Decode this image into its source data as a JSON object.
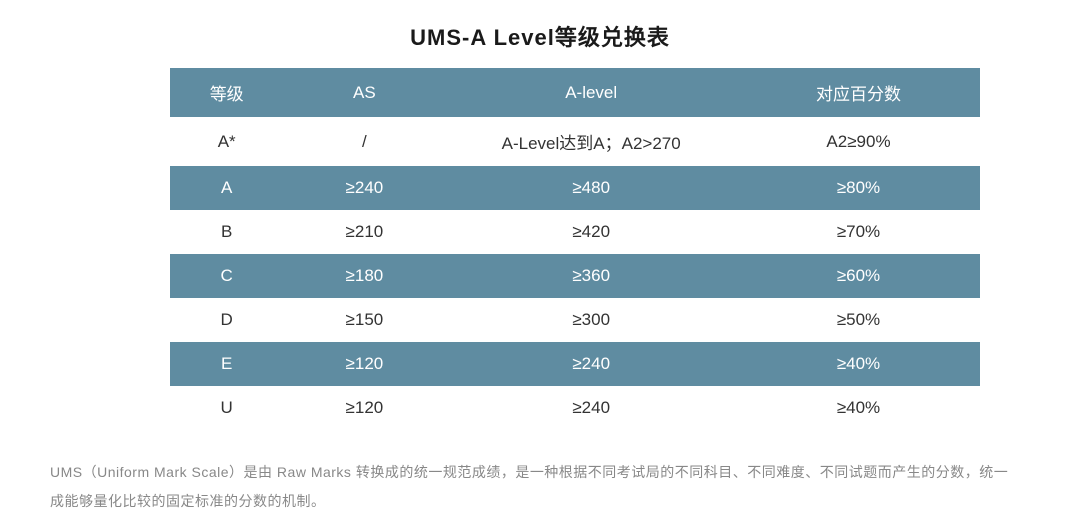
{
  "title": "UMS-A Level等级兑换表",
  "table": {
    "columns": [
      "等级",
      "AS",
      "A-level",
      "对应百分数"
    ],
    "column_align": [
      "center",
      "center",
      "center",
      "center"
    ],
    "header_bg": "#5f8ca1",
    "header_color": "#ffffff",
    "row_alt_bg": "#5f8ca1",
    "row_alt_color": "#ffffff",
    "row_bg": "#ffffff",
    "row_color": "#333333",
    "font_size": 17,
    "rows": [
      [
        "A*",
        "/",
        "A-Level达到A；A2>270",
        "A2≥90%"
      ],
      [
        "A",
        "≥240",
        "≥480",
        "≥80%"
      ],
      [
        "B",
        "≥210",
        "≥420",
        "≥70%"
      ],
      [
        "C",
        "≥180",
        "≥360",
        "≥60%"
      ],
      [
        "D",
        "≥150",
        "≥300",
        "≥50%"
      ],
      [
        "E",
        "≥120",
        "≥240",
        "≥40%"
      ],
      [
        "U",
        "≥120",
        "≥240",
        "≥40%"
      ]
    ]
  },
  "footnote": "UMS（Uniform Mark Scale）是由 Raw Marks 转换成的统一规范成绩，是一种根据不同考试局的不同科目、不同难度、不同试题而产生的分数，统一成能够量化比较的固定标准的分数的机制。",
  "style": {
    "title_fontsize": 22,
    "title_color": "#1a1a1a",
    "footnote_fontsize": 14,
    "footnote_color": "#888888",
    "background": "#ffffff"
  }
}
